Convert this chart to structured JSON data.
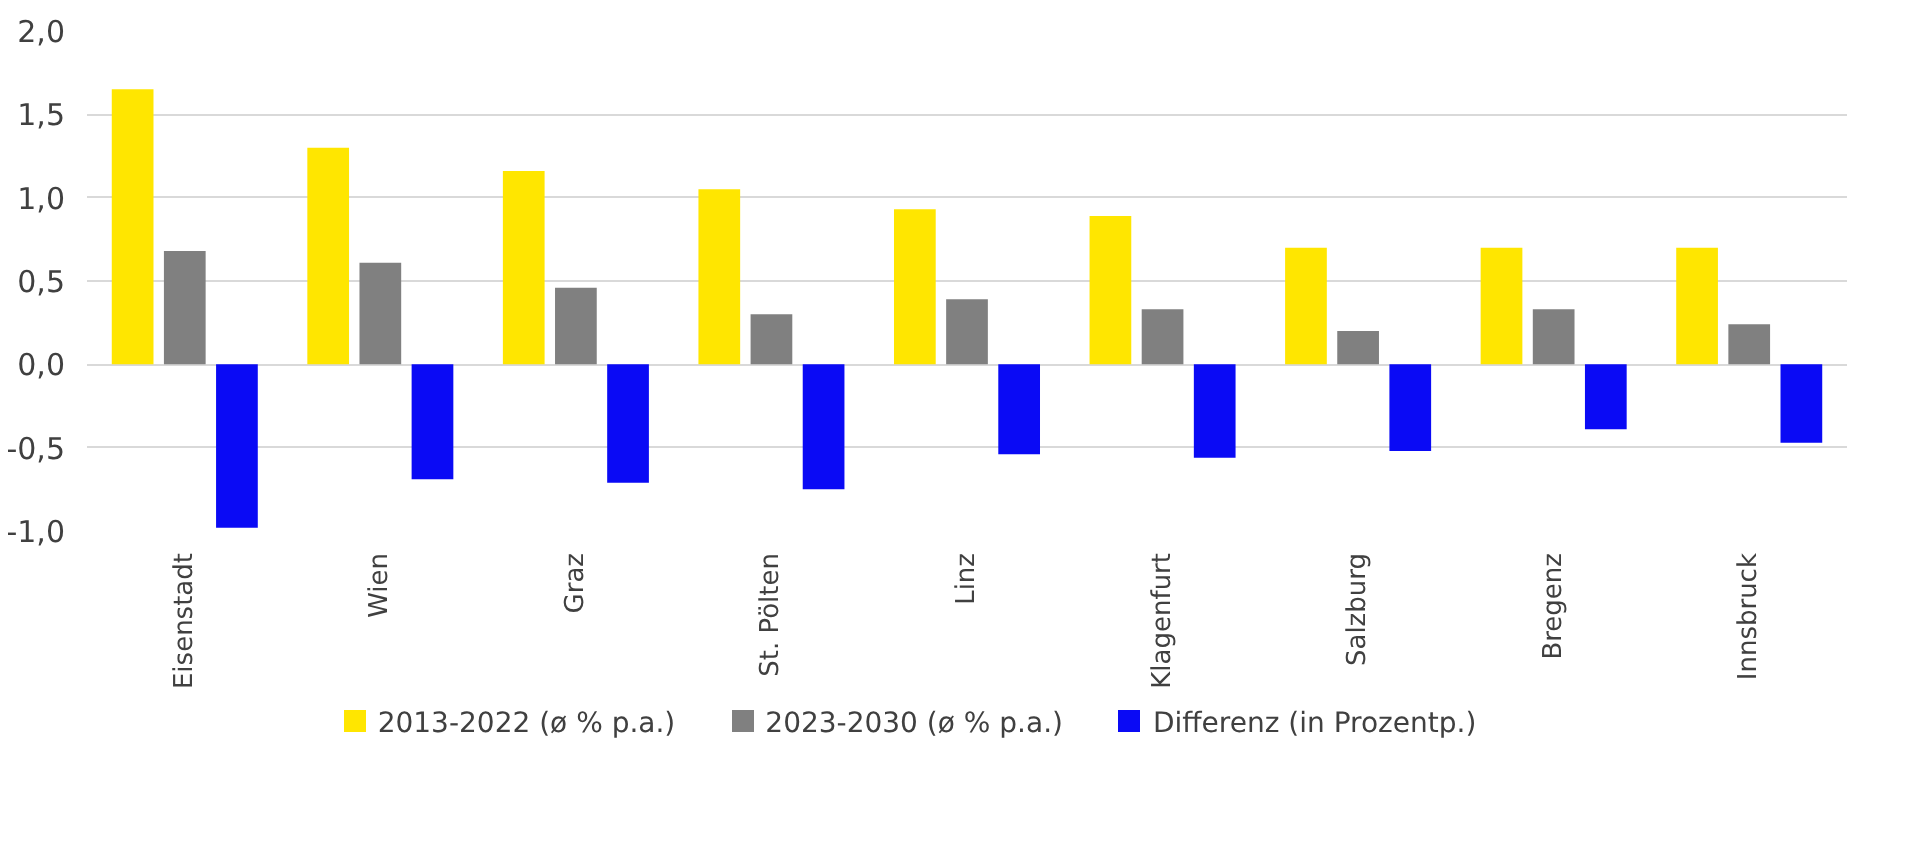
{
  "chart_data": {
    "type": "bar",
    "categories": [
      "Eisenstadt",
      "Wien",
      "Graz",
      "St. Pölten",
      "Linz",
      "Klagenfurt",
      "Salzburg",
      "Bregenz",
      "Innsbruck"
    ],
    "series": [
      {
        "name": "2013-2022 (ø % p.a.)",
        "color": "#ffe600",
        "values": [
          1.65,
          1.3,
          1.16,
          1.05,
          0.93,
          0.89,
          0.7,
          0.7,
          0.7
        ]
      },
      {
        "name": "2023-2030 (ø % p.a.)",
        "color": "#808080",
        "values": [
          0.68,
          0.61,
          0.46,
          0.3,
          0.39,
          0.33,
          0.2,
          0.33,
          0.24
        ]
      },
      {
        "name": "Differenz (in Prozentp.)",
        "color": "#0a0af5",
        "values": [
          -0.98,
          -0.69,
          -0.71,
          -0.75,
          -0.54,
          -0.56,
          -0.52,
          -0.39,
          -0.47
        ]
      }
    ],
    "ylim": [
      -1,
      2
    ],
    "yticks": [
      {
        "value": -1,
        "label": "-1,0"
      },
      {
        "value": -0.5,
        "label": "-0,5"
      },
      {
        "value": 0,
        "label": "0,0"
      },
      {
        "value": 0.5,
        "label": "0,5"
      },
      {
        "value": 1,
        "label": "1,0"
      },
      {
        "value": 1.5,
        "label": "1,5"
      },
      {
        "value": 2,
        "label": "2,0"
      }
    ],
    "grid": "y",
    "legend": "bottom"
  }
}
